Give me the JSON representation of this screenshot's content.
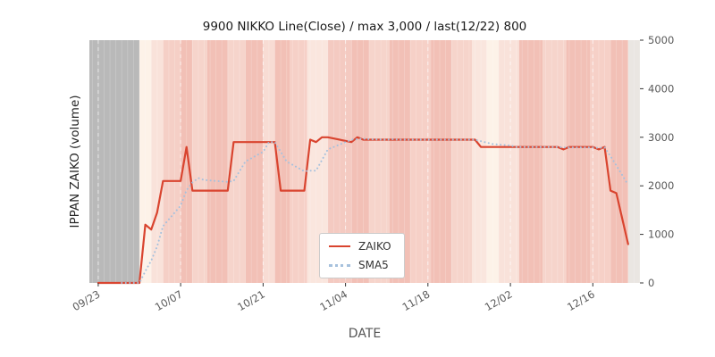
{
  "chart_data": {
    "type": "line",
    "title": "9900 NIKKO Line(Close) / max 3,000 / last(12/22) 800",
    "xlabel": "DATE",
    "ylabel": "IPPAN ZAIKO (volume)",
    "xlim": [
      -1.5,
      92
    ],
    "ylim": [
      0,
      5000
    ],
    "grid": false,
    "legend_position": "lower center inside plot",
    "y_ticks": [
      0,
      1000,
      2000,
      3000,
      4000,
      5000
    ],
    "x_ticks": [
      {
        "pos": 0,
        "label": "09/23"
      },
      {
        "pos": 14,
        "label": "10/07"
      },
      {
        "pos": 28,
        "label": "10/21"
      },
      {
        "pos": 42,
        "label": "11/04"
      },
      {
        "pos": 56,
        "label": "11/18"
      },
      {
        "pos": 70,
        "label": "12/02"
      },
      {
        "pos": 84,
        "label": "12/16"
      }
    ],
    "series": [
      {
        "name": "ZAIKO",
        "color": "#d9442f",
        "style": "solid",
        "dates": [
          "09/23",
          "09/24",
          "09/25",
          "09/26",
          "09/27",
          "09/30",
          "10/01",
          "10/02",
          "10/03",
          "10/04",
          "10/07",
          "10/08",
          "10/09",
          "10/10",
          "10/11",
          "10/15",
          "10/16",
          "10/17",
          "10/18",
          "10/21",
          "10/22",
          "10/23",
          "10/24",
          "10/25",
          "10/28",
          "10/29",
          "10/30",
          "10/31",
          "11/01",
          "11/05",
          "11/06",
          "11/07",
          "11/08",
          "11/11",
          "11/12",
          "11/13",
          "11/14",
          "11/15",
          "11/18",
          "11/19",
          "11/20",
          "11/21",
          "11/22",
          "11/25",
          "11/26",
          "11/27",
          "11/28",
          "11/29",
          "12/02",
          "12/03",
          "12/04",
          "12/05",
          "12/06",
          "12/09",
          "12/10",
          "12/11",
          "12/12",
          "12/13",
          "12/16",
          "12/17",
          "12/18",
          "12/19",
          "12/20",
          "12/22"
        ],
        "x": [
          0,
          1,
          2,
          3,
          4,
          7,
          8,
          9,
          10,
          11,
          14,
          15,
          16,
          17,
          18,
          22,
          23,
          24,
          25,
          28,
          29,
          30,
          31,
          32,
          35,
          36,
          37,
          38,
          39,
          43,
          44,
          45,
          46,
          49,
          50,
          51,
          52,
          53,
          56,
          57,
          58,
          59,
          60,
          63,
          64,
          65,
          66,
          67,
          70,
          71,
          72,
          73,
          74,
          77,
          78,
          79,
          80,
          81,
          84,
          85,
          86,
          87,
          88,
          90
        ],
        "values": [
          0,
          0,
          0,
          0,
          0,
          0,
          1200,
          1100,
          1450,
          2100,
          2100,
          2800,
          1900,
          1900,
          1900,
          1900,
          2900,
          2900,
          2900,
          2900,
          2900,
          2900,
          1900,
          1900,
          1900,
          2950,
          2900,
          3000,
          3000,
          2900,
          3000,
          2950,
          2950,
          2950,
          2950,
          2950,
          2950,
          2950,
          2950,
          2950,
          2950,
          2950,
          2950,
          2950,
          2950,
          2800,
          2800,
          2800,
          2800,
          2800,
          2800,
          2800,
          2800,
          2800,
          2800,
          2750,
          2800,
          2800,
          2800,
          2750,
          2800,
          1900,
          1850,
          800
        ]
      },
      {
        "name": "SMA5",
        "color": "#a6c1dd",
        "style": "dotted",
        "window": 5,
        "derived_from": "ZAIKO"
      }
    ],
    "legend": {
      "entries": [
        "ZAIKO",
        "SMA5"
      ]
    },
    "background_bands": [
      [
        -1.5,
        7,
        "#b9b9b9"
      ],
      [
        7,
        9,
        "#fdf2e8"
      ],
      [
        9,
        11,
        "#f9e2da"
      ],
      [
        11,
        14,
        "#f5cfc6"
      ],
      [
        14,
        16,
        "#f2c0b6"
      ],
      [
        16,
        18.5,
        "#f6d4cb"
      ],
      [
        18.5,
        22,
        "#f2c0b6"
      ],
      [
        22,
        25,
        "#f6d4cb"
      ],
      [
        25,
        28,
        "#f2c0b6"
      ],
      [
        28,
        30,
        "#f8dcd4"
      ],
      [
        30,
        32.5,
        "#f2c0b6"
      ],
      [
        32.5,
        35.5,
        "#f6d0c7"
      ],
      [
        35.5,
        39,
        "#fae6de"
      ],
      [
        39,
        43,
        "#f4cac1"
      ],
      [
        43,
        46,
        "#f2c0b6"
      ],
      [
        46,
        49.5,
        "#f6d4cb"
      ],
      [
        49.5,
        53,
        "#f2c0b6"
      ],
      [
        53,
        56.5,
        "#f6d0c7"
      ],
      [
        56.5,
        60,
        "#f2c0b6"
      ],
      [
        60,
        63.5,
        "#f6d4cb"
      ],
      [
        63.5,
        66,
        "#fae6de"
      ],
      [
        66,
        68,
        "#fdf2e8"
      ],
      [
        68,
        71.5,
        "#f9e2da"
      ],
      [
        71.5,
        75.5,
        "#f2c0b6"
      ],
      [
        75.5,
        79.5,
        "#f6d4cb"
      ],
      [
        79.5,
        83.5,
        "#f2c0b6"
      ],
      [
        83.5,
        87,
        "#f6d0c7"
      ],
      [
        87,
        90,
        "#f2c0b6"
      ],
      [
        90,
        92,
        "#eae6e2"
      ]
    ],
    "axis_colors": {
      "tick_label": "#595959",
      "tick_mark": "#333333"
    }
  }
}
